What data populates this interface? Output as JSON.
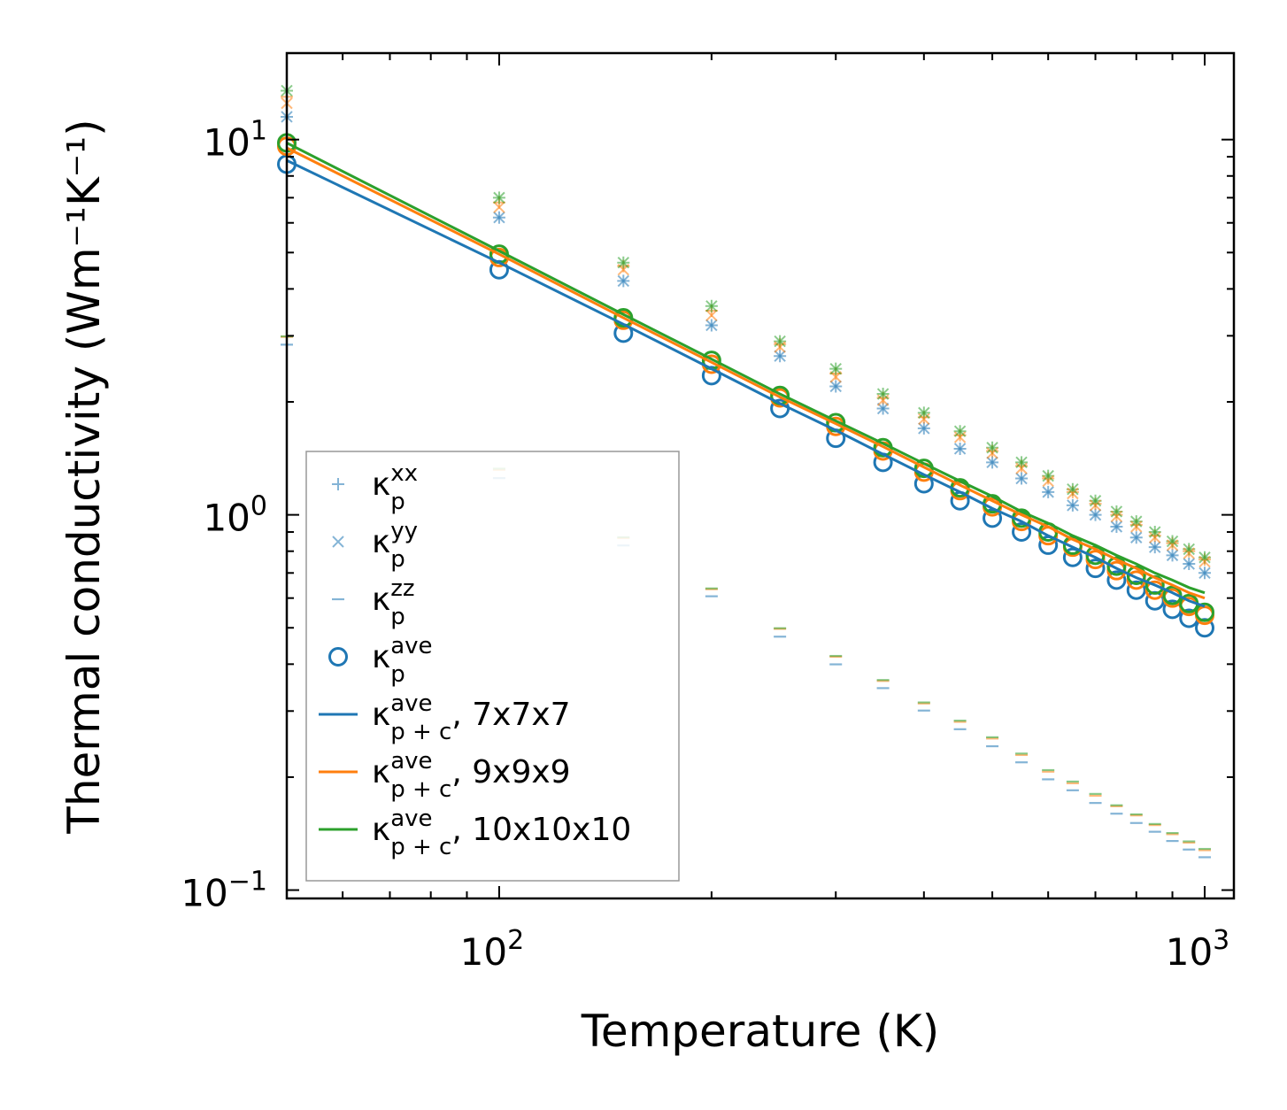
{
  "chart_data": {
    "type": "scatter",
    "xscale": "log",
    "yscale": "log",
    "xlim": [
      50,
      1100
    ],
    "ylim": [
      0.095,
      17
    ],
    "xlabel": "Temperature (K)",
    "ylabel": "Thermal conductivity (Wm⁻¹K⁻¹)",
    "xticks": [
      {
        "value": 100,
        "base": "10",
        "exp": "2"
      },
      {
        "value": 1000,
        "base": "10",
        "exp": "3"
      }
    ],
    "yticks": [
      {
        "value": 0.1,
        "base": "10",
        "exp": "−1"
      },
      {
        "value": 1,
        "base": "10",
        "exp": "0"
      },
      {
        "value": 10,
        "base": "10",
        "exp": "1"
      }
    ],
    "temperatures": [
      50,
      100,
      150,
      200,
      250,
      300,
      350,
      400,
      450,
      500,
      550,
      600,
      650,
      700,
      750,
      800,
      850,
      900,
      950,
      1000
    ],
    "colors": {
      "7x7x7": "#1f77b4",
      "9x9x9": "#ff7f0e",
      "10x10x10": "#2ca02c"
    },
    "series": [
      {
        "name": "kp_xx_7x7x7",
        "grid": "7x7x7",
        "component": "xx",
        "marker": "plus",
        "values": [
          11.5,
          6.2,
          4.2,
          3.2,
          2.65,
          2.2,
          1.92,
          1.7,
          1.5,
          1.38,
          1.25,
          1.15,
          1.06,
          1.0,
          0.93,
          0.87,
          0.82,
          0.78,
          0.74,
          0.7
        ]
      },
      {
        "name": "kp_xx_9x9x9",
        "grid": "9x9x9",
        "component": "xx",
        "marker": "plus",
        "values": [
          13.0,
          6.8,
          4.6,
          3.5,
          2.85,
          2.38,
          2.05,
          1.82,
          1.63,
          1.48,
          1.35,
          1.25,
          1.15,
          1.07,
          1.0,
          0.94,
          0.88,
          0.84,
          0.8,
          0.76
        ]
      },
      {
        "name": "kp_xx_10x10x10",
        "grid": "10x10x10",
        "component": "xx",
        "marker": "plus",
        "values": [
          13.5,
          7.0,
          4.7,
          3.6,
          2.9,
          2.45,
          2.1,
          1.87,
          1.67,
          1.51,
          1.38,
          1.27,
          1.17,
          1.09,
          1.02,
          0.96,
          0.9,
          0.85,
          0.81,
          0.77
        ]
      },
      {
        "name": "kp_yy_7x7x7",
        "grid": "7x7x7",
        "component": "yy",
        "marker": "x",
        "values": [
          11.5,
          6.2,
          4.2,
          3.2,
          2.65,
          2.2,
          1.92,
          1.7,
          1.5,
          1.38,
          1.25,
          1.15,
          1.06,
          1.0,
          0.93,
          0.87,
          0.82,
          0.78,
          0.74,
          0.7
        ]
      },
      {
        "name": "kp_yy_9x9x9",
        "grid": "9x9x9",
        "component": "yy",
        "marker": "x",
        "values": [
          12.5,
          6.6,
          4.5,
          3.4,
          2.8,
          2.33,
          2.02,
          1.8,
          1.61,
          1.46,
          1.33,
          1.23,
          1.14,
          1.06,
          0.99,
          0.93,
          0.87,
          0.83,
          0.79,
          0.75
        ]
      },
      {
        "name": "kp_yy_10x10x10",
        "grid": "10x10x10",
        "component": "yy",
        "marker": "x",
        "values": [
          13.5,
          7.0,
          4.7,
          3.6,
          2.9,
          2.45,
          2.1,
          1.87,
          1.67,
          1.51,
          1.38,
          1.27,
          1.17,
          1.09,
          1.02,
          0.96,
          0.9,
          0.85,
          0.81,
          0.77
        ]
      },
      {
        "name": "kp_zz_7x7x7",
        "grid": "7x7x7",
        "component": "zz",
        "marker": "dash",
        "values": [
          2.88,
          1.27,
          0.84,
          0.615,
          0.48,
          0.405,
          0.35,
          0.305,
          0.272,
          0.245,
          0.222,
          0.2,
          0.187,
          0.173,
          0.162,
          0.153,
          0.145,
          0.137,
          0.13,
          0.124
        ]
      },
      {
        "name": "kp_zz_9x9x9",
        "grid": "9x9x9",
        "component": "zz",
        "marker": "dash",
        "values": [
          2.94,
          1.3,
          0.855,
          0.625,
          0.49,
          0.413,
          0.356,
          0.31,
          0.277,
          0.25,
          0.226,
          0.204,
          0.19,
          0.176,
          0.165,
          0.156,
          0.147,
          0.139,
          0.132,
          0.126
        ]
      },
      {
        "name": "kp_zz_10x10x10",
        "grid": "10x10x10",
        "component": "zz",
        "marker": "dash",
        "values": [
          2.95,
          1.31,
          0.86,
          0.628,
          0.492,
          0.415,
          0.358,
          0.312,
          0.279,
          0.252,
          0.228,
          0.206,
          0.192,
          0.178,
          0.166,
          0.157,
          0.148,
          0.14,
          0.133,
          0.127
        ]
      },
      {
        "name": "kp_ave_7x7x7",
        "grid": "7x7x7",
        "component": "ave",
        "marker": "circle",
        "values": [
          8.6,
          4.5,
          3.05,
          2.35,
          1.92,
          1.6,
          1.38,
          1.21,
          1.09,
          0.98,
          0.9,
          0.83,
          0.77,
          0.72,
          0.67,
          0.63,
          0.59,
          0.56,
          0.53,
          0.5
        ]
      },
      {
        "name": "kp_ave_9x9x9",
        "grid": "9x9x9",
        "component": "ave",
        "marker": "circle",
        "values": [
          9.6,
          4.85,
          3.3,
          2.52,
          2.05,
          1.72,
          1.48,
          1.3,
          1.16,
          1.05,
          0.96,
          0.88,
          0.82,
          0.76,
          0.71,
          0.67,
          0.63,
          0.6,
          0.57,
          0.54
        ]
      },
      {
        "name": "kp_ave_10x10x10",
        "grid": "10x10x10",
        "component": "ave",
        "marker": "circle",
        "values": [
          9.8,
          4.95,
          3.35,
          2.58,
          2.08,
          1.76,
          1.51,
          1.33,
          1.18,
          1.07,
          0.98,
          0.9,
          0.83,
          0.78,
          0.73,
          0.69,
          0.65,
          0.61,
          0.58,
          0.55
        ]
      },
      {
        "name": "kp+c_ave_7x7x7",
        "grid": "7x7x7",
        "component": "ave_pc",
        "marker": "line",
        "values": [
          8.8,
          4.7,
          3.22,
          2.45,
          1.98,
          1.68,
          1.45,
          1.28,
          1.15,
          1.04,
          0.96,
          0.88,
          0.82,
          0.77,
          0.72,
          0.68,
          0.65,
          0.62,
          0.59,
          0.57
        ]
      },
      {
        "name": "kp+c_ave_9x9x9",
        "grid": "9x9x9",
        "component": "ave_pc",
        "marker": "line",
        "values": [
          9.5,
          4.95,
          3.35,
          2.55,
          2.06,
          1.75,
          1.52,
          1.34,
          1.2,
          1.09,
          1.0,
          0.93,
          0.86,
          0.81,
          0.76,
          0.72,
          0.68,
          0.65,
          0.62,
          0.6
        ]
      },
      {
        "name": "kp+c_ave_10x10x10",
        "grid": "10x10x10",
        "component": "ave_pc",
        "marker": "line",
        "values": [
          9.8,
          5.05,
          3.42,
          2.6,
          2.1,
          1.78,
          1.55,
          1.37,
          1.23,
          1.12,
          1.02,
          0.95,
          0.88,
          0.83,
          0.78,
          0.74,
          0.7,
          0.67,
          0.64,
          0.62
        ]
      }
    ],
    "legend": {
      "location": "lower-left",
      "entries": [
        {
          "marker": "plus",
          "color": "#1f77b4",
          "base": "κ",
          "sup": "xx",
          "sub": "p",
          "suffix": ""
        },
        {
          "marker": "x",
          "color": "#1f77b4",
          "base": "κ",
          "sup": "yy",
          "sub": "p",
          "suffix": ""
        },
        {
          "marker": "dash",
          "color": "#1f77b4",
          "base": "κ",
          "sup": "zz",
          "sub": "p",
          "suffix": ""
        },
        {
          "marker": "circle",
          "color": "#1f77b4",
          "base": "κ",
          "sup": "ave",
          "sub": "p",
          "suffix": ""
        },
        {
          "marker": "line",
          "color": "#1f77b4",
          "base": "κ",
          "sup": "ave",
          "sub": "p + c",
          "suffix": ", 7x7x7"
        },
        {
          "marker": "line",
          "color": "#ff7f0e",
          "base": "κ",
          "sup": "ave",
          "sub": "p + c",
          "suffix": ", 9x9x9"
        },
        {
          "marker": "line",
          "color": "#2ca02c",
          "base": "κ",
          "sup": "ave",
          "sub": "p + c",
          "suffix": ", 10x10x10"
        }
      ]
    }
  }
}
